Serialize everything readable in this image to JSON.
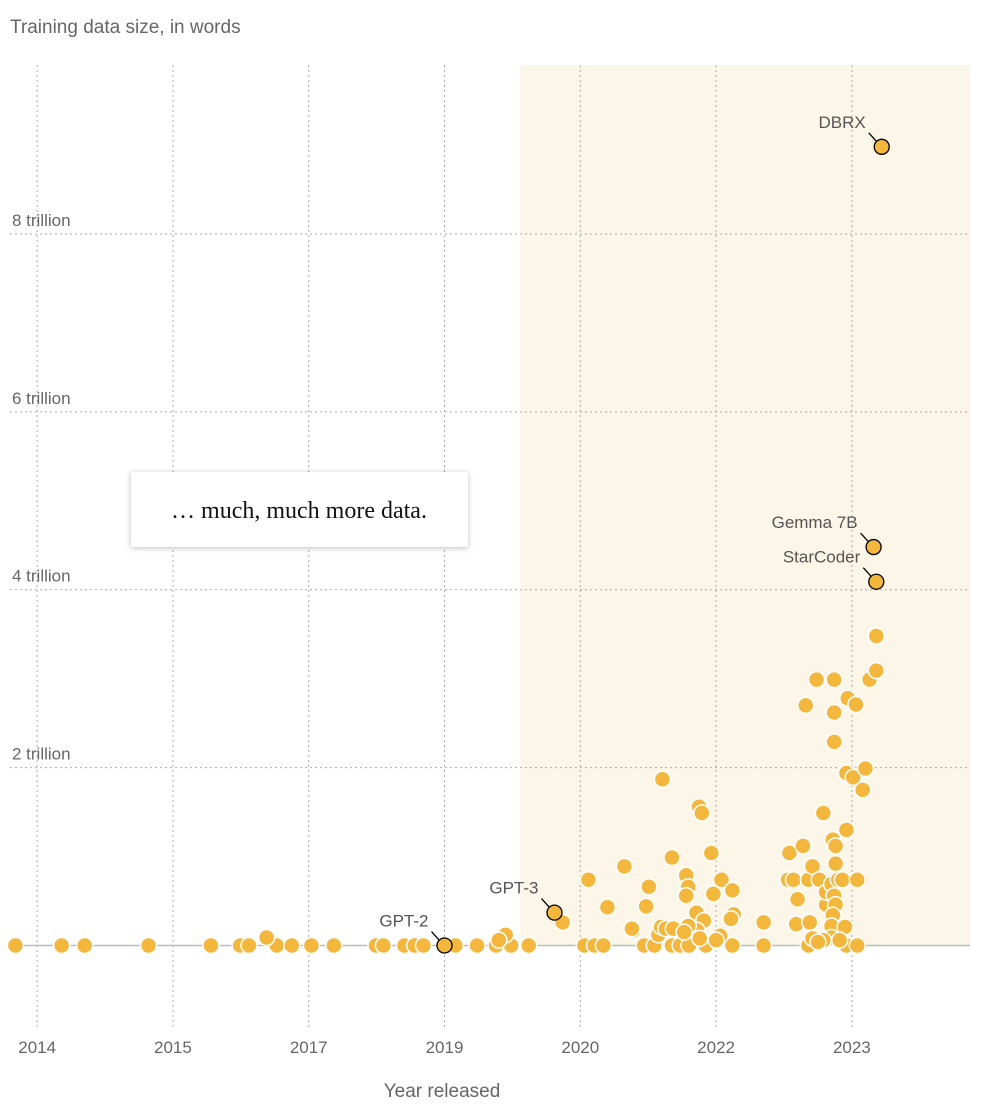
{
  "chart_data": {
    "type": "scatter",
    "y_label": "Training data size, in words",
    "x_label": "Year released",
    "annotation": "… much, much more data.",
    "color": "#f2b73c",
    "shaded_region": [
      2019.56,
      2023.87
    ],
    "xlim": [
      2013.8,
      2023.87
    ],
    "xticks": [
      2014,
      2015,
      2017,
      2019,
      2020,
      2022,
      2023
    ],
    "ylim": [
      -0.95,
      9.9
    ],
    "yticks": [
      {
        "value": 2,
        "label": "2 trillion"
      },
      {
        "value": 4,
        "label": "4 trillion"
      },
      {
        "value": 6,
        "label": "6 trillion"
      },
      {
        "value": 8,
        "label": "8 trillion"
      }
    ],
    "grid": true,
    "x": [
      2013.84,
      2014.18,
      2014.35,
      2014.82,
      2015.56,
      2015.99,
      2016.12,
      2016.53,
      2016.75,
      2017.04,
      2017.37,
      2017.99,
      2018.1,
      2018.41,
      2018.56,
      2018.69,
      2019.08,
      2019.24,
      2019.38,
      2019.49,
      2019.62,
      2020.06,
      2020.21,
      2020.34,
      2020.94,
      2021.09,
      2021.35,
      2021.47,
      2021.6,
      2021.85,
      2022.12,
      2022.35,
      2022.68,
      2022.96,
      2023.04,
      2016.38,
      2019.45,
      2019.4,
      2019.87,
      2020.12,
      2020.4,
      2020.65,
      2020.78,
      2020.97,
      2021.01,
      2020.76,
      2021.15,
      2021.19,
      2021.26,
      2021.37,
      2021.21,
      2021.35,
      2021.56,
      2021.59,
      2021.56,
      2021.71,
      2021.75,
      2021.79,
      2021.82,
      2021.72,
      2021.93,
      2021.96,
      2022.03,
      2022.04,
      2022.12,
      2022.13,
      2022.11,
      2021.59,
      2021.53,
      2022.0,
      2021.76,
      2022.35,
      2022.54,
      2022.53,
      2022.57,
      2022.64,
      2022.66,
      2022.6,
      2022.68,
      2022.59,
      2022.69,
      2022.71,
      2022.71,
      2022.74,
      2022.79,
      2022.76,
      2022.81,
      2022.81,
      2022.85,
      2022.87,
      2022.87,
      2022.87,
      2022.86,
      2022.88,
      2022.88,
      2022.9,
      2022.93,
      2022.87,
      2022.88,
      2022.86,
      2022.85,
      2022.96,
      2022.97,
      2023.03,
      2022.96,
      2023.01,
      2023.04,
      2023.1,
      2023.08,
      2023.13,
      2023.18,
      2023.18,
      2022.95,
      2022.85,
      2022.79,
      2022.75,
      2022.91
    ],
    "values": [
      0,
      0,
      0,
      0,
      0,
      0,
      0,
      0,
      0,
      0,
      0,
      0,
      0,
      0,
      0,
      0,
      0,
      0,
      0,
      0,
      0,
      0,
      0,
      0,
      0,
      0,
      0,
      0,
      0,
      0,
      0,
      0,
      0,
      0,
      0,
      0.09,
      0.12,
      0.06,
      0.26,
      0.74,
      0.43,
      0.89,
      0.17,
      0.44,
      0.66,
      0.19,
      0.12,
      0.21,
      0.19,
      0.19,
      1.87,
      0.99,
      0.79,
      0.66,
      0.56,
      0.37,
      1.56,
      1.49,
      0.28,
      0.17,
      1.04,
      0.58,
      0.11,
      0.74,
      0.62,
      0.35,
      0.3,
      0.22,
      0.15,
      0.06,
      0.08,
      0.26,
      1.04,
      0.74,
      0.74,
      1.12,
      2.7,
      0.52,
      0.74,
      0.24,
      0.26,
      0.89,
      0.08,
      2.99,
      1.49,
      0.74,
      0.46,
      0.6,
      0.69,
      2.99,
      2.62,
      2.29,
      1.19,
      1.12,
      0.92,
      0.74,
      0.74,
      0.56,
      0.46,
      0.34,
      0.22,
      1.3,
      2.78,
      2.71,
      1.94,
      1.89,
      0.74,
      1.99,
      1.75,
      2.99,
      3.48,
      3.09,
      0.21,
      0.09,
      0.06,
      0.04,
      0.06
    ],
    "labeled_points": {
      "labels": [
        "DBRX",
        "Gemma 7B",
        "StarCoder",
        "GPT-3",
        "GPT-2"
      ],
      "x": [
        2023.22,
        2023.16,
        2023.18,
        2019.81,
        2019.0
      ],
      "values": [
        8.98,
        4.48,
        4.09,
        0.37,
        0
      ]
    }
  }
}
